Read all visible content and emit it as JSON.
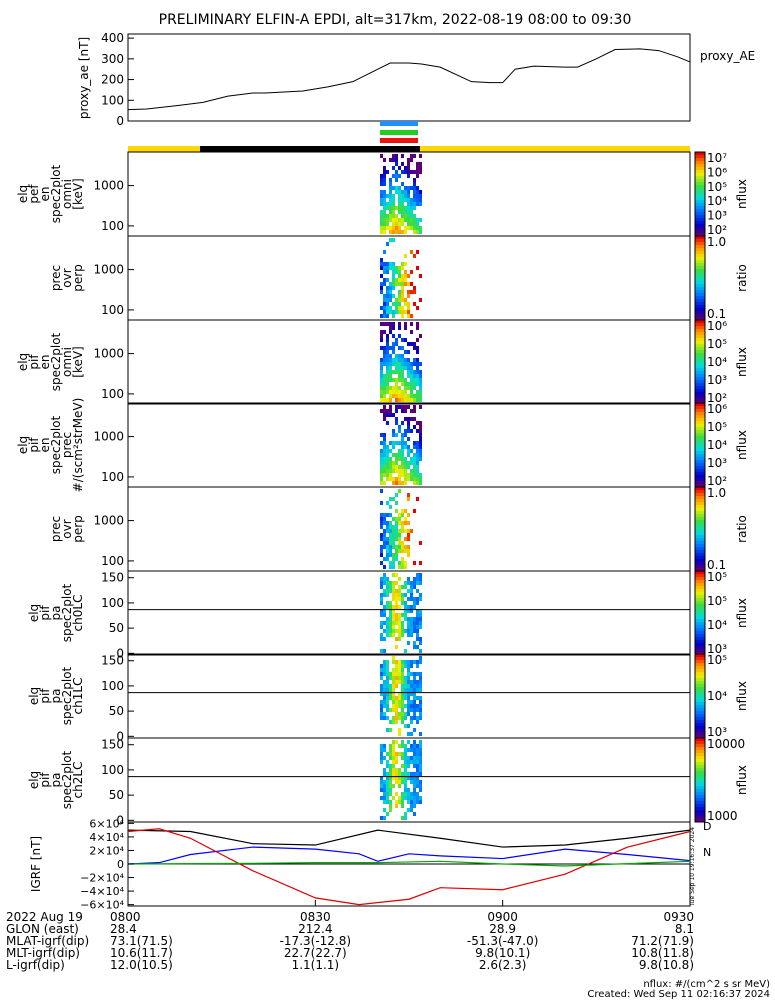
{
  "title": "PRELIMINARY ELFIN-A EPDI, alt=317km, 2022-08-19 08:00 to 09:30",
  "colors": {
    "yellow": "#ffd700",
    "black": "#000000",
    "blue_bar": "#1e90ff",
    "green_bar": "#22cc22",
    "red_bar": "#ee1111",
    "line_blue": "#0000ff",
    "line_red": "#dd0000",
    "line_green": "#00aa00"
  },
  "ae_panel": {
    "ylabel": "proxy_ae [nT]",
    "legend": "proxy_AE",
    "ticks": [
      "400",
      "300",
      "200",
      "100",
      "0"
    ],
    "ylim": [
      0,
      420
    ]
  },
  "panels": [
    {
      "id": "p1",
      "ylabel_lines": [
        "elq",
        "pef",
        "en",
        "spec2plot",
        "omni",
        "[keV]"
      ],
      "ticks": [
        "1000",
        "100"
      ],
      "cb_ticks": [
        "10⁷",
        "10⁶",
        "10⁵",
        "10⁴",
        "10³",
        "10²"
      ],
      "cb_label": "nflux",
      "cb_type": "flux"
    },
    {
      "id": "p2",
      "ylabel_lines": [
        "prec",
        "ovr",
        "perp"
      ],
      "ticks": [
        "1000",
        "100"
      ],
      "cb_ticks": [
        "1.0",
        "0.1"
      ],
      "cb_label": "ratio",
      "cb_type": "ratio"
    },
    {
      "id": "p3",
      "ylabel_lines": [
        "elq",
        "pif",
        "en",
        "spec2plot",
        "omni",
        "[keV]"
      ],
      "ticks": [
        "1000",
        "100"
      ],
      "cb_ticks": [
        "10⁶",
        "10⁵",
        "10⁴",
        "10³",
        "10²"
      ],
      "cb_label": "nflux",
      "cb_type": "flux"
    },
    {
      "id": "p4",
      "ylabel_lines": [
        "elq",
        "pif",
        "en",
        "spec2plot",
        "prec",
        "#/(scm²strMeV)"
      ],
      "ticks": [
        "1000",
        "100"
      ],
      "cb_ticks": [
        "10⁶",
        "10⁵",
        "10⁴",
        "10³",
        "10²"
      ],
      "cb_label": "nflux",
      "cb_type": "flux"
    },
    {
      "id": "p5",
      "ylabel_lines": [
        "prec",
        "ovr",
        "perp"
      ],
      "ticks": [
        "1000",
        "100"
      ],
      "cb_ticks": [
        "1.0",
        "0.1"
      ],
      "cb_label": "ratio",
      "cb_type": "ratio"
    },
    {
      "id": "p6",
      "ylabel_lines": [
        "elq",
        "pif",
        "pa",
        "spec2plot",
        "ch0LC"
      ],
      "ticks": [
        "150",
        "100",
        "50",
        "0"
      ],
      "cb_ticks": [
        "10⁵",
        "10⁵",
        "10⁴",
        "10³"
      ],
      "cb_label": "nflux",
      "cb_type": "flux"
    },
    {
      "id": "p7",
      "ylabel_lines": [
        "elq",
        "pif",
        "pa",
        "spec2plot",
        "ch1LC"
      ],
      "ticks": [
        "150",
        "100",
        "50",
        "0"
      ],
      "cb_ticks": [
        "10⁵",
        "10⁴",
        "10³"
      ],
      "cb_label": "nflux",
      "cb_type": "flux"
    },
    {
      "id": "p8",
      "ylabel_lines": [
        "elq",
        "pif",
        "pa",
        "spec2plot",
        "ch2LC"
      ],
      "ticks": [
        "150",
        "100",
        "50",
        "0"
      ],
      "cb_ticks": [
        "10000",
        "1000"
      ],
      "cb_label": "nflux",
      "cb_type": "flux"
    }
  ],
  "igrf_panel": {
    "ylabel": "IGRF [nT]",
    "ticks": [
      "6×10⁴",
      "4×10⁴",
      "2×10⁴",
      "0",
      "−2×10⁴",
      "−4×10⁴",
      "−6×10⁴"
    ],
    "ylim": [
      -62000,
      62000
    ],
    "side_stamp": "Tue Sep 10 19:16:37 2024",
    "legend_small": [
      "D",
      "N"
    ]
  },
  "footer": {
    "rows": [
      {
        "label": "2022 Aug 19",
        "values": [
          "0800",
          "0830",
          "0900",
          "0930"
        ]
      },
      {
        "label": "GLON (east)",
        "values": [
          "28.4",
          "212.4",
          "28.9",
          "8.1"
        ]
      },
      {
        "label": "MLAT-igrf(dip)",
        "values": [
          "73.1(71.5)",
          "-17.3(-12.8)",
          "-51.3(-47.0)",
          "71.2(71.9)"
        ]
      },
      {
        "label": "MLT-igrf(dip)",
        "values": [
          "10.6(11.7)",
          "22.7(22.7)",
          "9.8(10.1)",
          "10.8(11.8)"
        ]
      },
      {
        "label": "L-igrf(dip)",
        "values": [
          "12.0(10.5)",
          "1.1(1.1)",
          "2.6(2.3)",
          "9.8(10.8)"
        ]
      }
    ],
    "note1": "nflux: #/(cm^2 s sr MeV)",
    "note2": "Created: Wed Sep 11 02:16:37 2024"
  },
  "chart_data": {
    "type": "line",
    "title": "PRELIMINARY ELFIN-A EPDI, alt=317km, 2022-08-19 08:00 to 09:30",
    "x_unit": "minutes after 08:00",
    "xlim": [
      0,
      90
    ],
    "proxy_ae": {
      "x": [
        0,
        3,
        8,
        12,
        16,
        20,
        22,
        28,
        32,
        36,
        40,
        42,
        45,
        47,
        50,
        55,
        58,
        60,
        62,
        65,
        70,
        72,
        75,
        78,
        82,
        85,
        88,
        90
      ],
      "y": [
        55,
        58,
        75,
        90,
        120,
        135,
        135,
        145,
        165,
        190,
        250,
        280,
        280,
        275,
        260,
        190,
        185,
        185,
        250,
        265,
        260,
        260,
        300,
        345,
        348,
        340,
        310,
        285
      ]
    },
    "igrf": {
      "ylim": [
        -62000,
        62000
      ],
      "series": [
        {
          "name": "black",
          "x": [
            0,
            10,
            20,
            30,
            40,
            50,
            60,
            70,
            80,
            90
          ],
          "y": [
            50000,
            48000,
            30000,
            28000,
            50000,
            38000,
            25000,
            28000,
            38000,
            50000
          ]
        },
        {
          "name": "blue",
          "x": [
            0,
            5,
            10,
            20,
            30,
            37,
            40,
            45,
            50,
            60,
            70,
            80,
            90
          ],
          "y": [
            0,
            2000,
            14000,
            25000,
            22000,
            15000,
            4000,
            15000,
            12000,
            8000,
            22000,
            14000,
            5000
          ]
        },
        {
          "name": "red",
          "x": [
            0,
            5,
            10,
            20,
            30,
            37,
            45,
            50,
            60,
            70,
            80,
            90
          ],
          "y": [
            48000,
            52000,
            38000,
            -10000,
            -50000,
            -60000,
            -52000,
            -35000,
            -38000,
            -15000,
            25000,
            48000
          ]
        },
        {
          "name": "green",
          "x": [
            0,
            10,
            20,
            30,
            40,
            50,
            60,
            70,
            80,
            90
          ],
          "y": [
            0,
            500,
            1000,
            2000,
            2000,
            4000,
            0,
            -3000,
            500,
            4000
          ]
        }
      ]
    }
  }
}
